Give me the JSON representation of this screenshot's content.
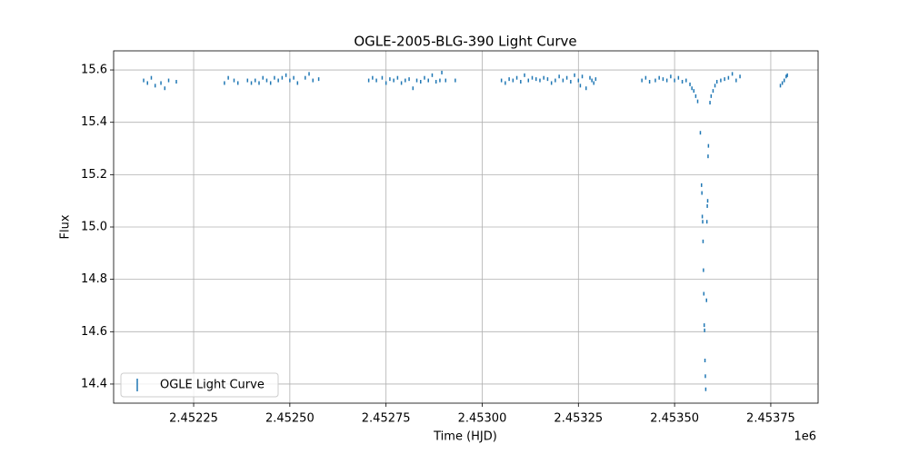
{
  "chart_data": {
    "type": "scatter",
    "title": "OGLE-2005-BLG-390 Light Curve",
    "x_label": "Time (HJD)",
    "y_label": "Flux",
    "x_offset_label": "1e6",
    "grid": true,
    "legend": "lower left",
    "xlim": [
      2452042,
      2453873
    ],
    "ylim": [
      14.327,
      15.673
    ],
    "xticks": [
      {
        "value": 2452250,
        "label": "2.45225"
      },
      {
        "value": 2452500,
        "label": "2.45250"
      },
      {
        "value": 2452750,
        "label": "2.45275"
      },
      {
        "value": 2453000,
        "label": "2.45300"
      },
      {
        "value": 2453250,
        "label": "2.45325"
      },
      {
        "value": 2453500,
        "label": "2.45350"
      },
      {
        "value": 2453750,
        "label": "2.45375"
      }
    ],
    "yticks": [
      14.4,
      14.6,
      14.8,
      {
        "value": 15,
        "label": "15.0"
      },
      15.2,
      15.4,
      15.6
    ],
    "x": [
      2452120,
      2452130,
      2452140,
      2452150,
      2452165,
      2452175,
      2452185,
      2452205,
      2452330,
      2452340,
      2452355,
      2452365,
      2452390,
      2452400,
      2452410,
      2452420,
      2452430,
      2452440,
      2452450,
      2452460,
      2452470,
      2452480,
      2452490,
      2452500,
      2452510,
      2452520,
      2452540,
      2452550,
      2452560,
      2452575,
      2452705,
      2452715,
      2452725,
      2452740,
      2452750,
      2452760,
      2452770,
      2452780,
      2452790,
      2452800,
      2452810,
      2452820,
      2452830,
      2452840,
      2452850,
      2452860,
      2452870,
      2452880,
      2452890,
      2452895,
      2452905,
      2452930,
      2453050,
      2453060,
      2453070,
      2453080,
      2453090,
      2453100,
      2453110,
      2453120,
      2453130,
      2453140,
      2453150,
      2453160,
      2453170,
      2453180,
      2453190,
      2453200,
      2453210,
      2453220,
      2453230,
      2453240,
      2453250,
      2453255,
      2453260,
      2453270,
      2453280,
      2453285,
      2453290,
      2453295,
      2453415,
      2453425,
      2453435,
      2453450,
      2453460,
      2453470,
      2453480,
      2453490,
      2453500,
      2453510,
      2453520,
      2453530,
      2453540,
      2453545,
      2453550,
      2453555,
      2453560,
      2453567,
      2453570,
      2453571,
      2453572,
      2453573,
      2453574,
      2453575,
      2453576,
      2453577,
      2453578,
      2453579,
      2453580,
      2453581,
      2453583,
      2453584,
      2453585,
      2453586,
      2453587,
      2453588,
      2453592,
      2453595,
      2453600,
      2453605,
      2453610,
      2453620,
      2453630,
      2453640,
      2453650,
      2453660,
      2453670,
      2453775,
      2453780,
      2453785,
      2453790,
      2453793
    ],
    "series": [
      {
        "name": "OGLE Light Curve",
        "color": "#1f77b4",
        "values": [
          15.56,
          15.55,
          15.57,
          15.54,
          15.55,
          15.53,
          15.56,
          15.555,
          15.55,
          15.57,
          15.56,
          15.55,
          15.56,
          15.55,
          15.56,
          15.55,
          15.57,
          15.56,
          15.55,
          15.57,
          15.56,
          15.57,
          15.58,
          15.56,
          15.57,
          15.55,
          15.57,
          15.585,
          15.56,
          15.565,
          15.56,
          15.57,
          15.56,
          15.57,
          15.55,
          15.565,
          15.56,
          15.57,
          15.55,
          15.56,
          15.565,
          15.53,
          15.56,
          15.555,
          15.57,
          15.56,
          15.58,
          15.555,
          15.56,
          15.59,
          15.56,
          15.56,
          15.56,
          15.55,
          15.565,
          15.56,
          15.57,
          15.555,
          15.58,
          15.56,
          15.57,
          15.565,
          15.56,
          15.57,
          15.565,
          15.55,
          15.56,
          15.575,
          15.56,
          15.57,
          15.555,
          15.58,
          15.56,
          15.54,
          15.575,
          15.53,
          15.57,
          15.56,
          15.55,
          15.565,
          15.56,
          15.57,
          15.555,
          15.56,
          15.57,
          15.565,
          15.56,
          15.575,
          15.56,
          15.57,
          15.555,
          15.56,
          15.545,
          15.53,
          15.52,
          15.5,
          15.48,
          15.36,
          15.16,
          15.13,
          15.04,
          15.02,
          14.945,
          14.835,
          14.745,
          14.625,
          14.605,
          14.49,
          14.43,
          14.38,
          14.72,
          15.02,
          15.08,
          15.1,
          15.27,
          15.31,
          15.475,
          15.5,
          15.52,
          15.54,
          15.555,
          15.56,
          15.565,
          15.57,
          15.585,
          15.56,
          15.575,
          15.54,
          15.55,
          15.56,
          15.575,
          15.58
        ]
      }
    ]
  }
}
